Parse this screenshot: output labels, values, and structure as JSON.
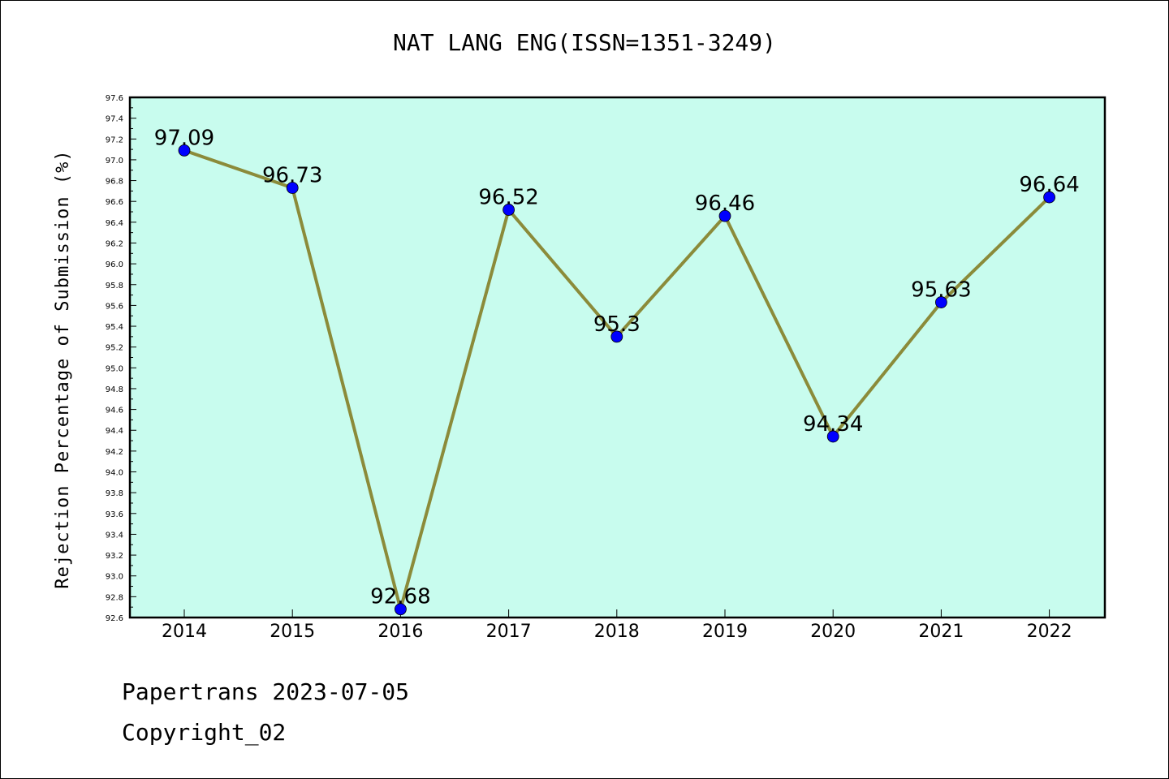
{
  "chart_data": {
    "type": "line",
    "title": "NAT LANG ENG(ISSN=1351-3249)",
    "xlabel": "",
    "ylabel": "Rejection Percentage of Submission (%)",
    "categories": [
      "2014",
      "2015",
      "2016",
      "2017",
      "2018",
      "2019",
      "2020",
      "2021",
      "2022"
    ],
    "series": [
      {
        "values": [
          97.09,
          96.73,
          92.68,
          96.52,
          95.3,
          96.46,
          94.34,
          95.63,
          96.64
        ],
        "labels": [
          "97.09",
          "96.73",
          "92.68",
          "96.52",
          "95.3",
          "96.46",
          "94.34",
          "95.63",
          "96.64"
        ]
      }
    ],
    "ylim": [
      92.6,
      97.6
    ],
    "yticks": [
      "92.6",
      "92.8",
      "93.0",
      "93.2",
      "93.4",
      "93.6",
      "93.8",
      "94.0",
      "94.2",
      "94.4",
      "94.6",
      "94.8",
      "95.0",
      "95.2",
      "95.4",
      "95.6",
      "95.8",
      "96.0",
      "96.2",
      "96.4",
      "96.6",
      "96.8",
      "97.0",
      "97.2",
      "97.4",
      "97.6"
    ],
    "grid": false,
    "colors": {
      "plot_background": "#c8fcee",
      "line": "#8b8b3a",
      "marker": "#0000ff"
    }
  },
  "footer": {
    "date_line": "Papertrans 2023-07-05",
    "copyright_line": "Copyright_02"
  }
}
